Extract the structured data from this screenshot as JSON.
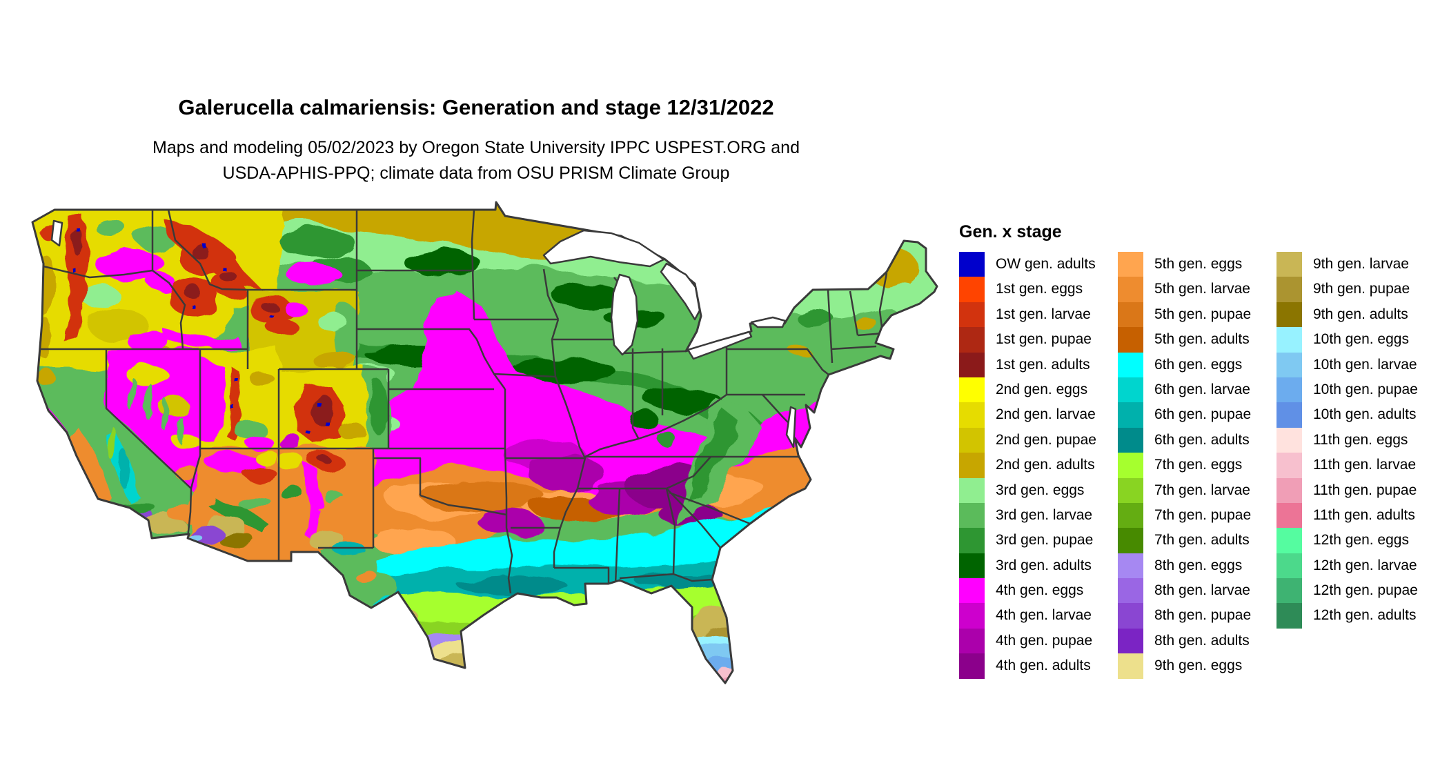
{
  "header": {
    "title": "Galerucella calmariensis: Generation and stage 12/31/2022",
    "subtitle_line1": "Maps and modeling 05/02/2023 by Oregon State University IPPC USPEST.ORG and",
    "subtitle_line2": "USDA-APHIS-PPQ; climate data from OSU PRISM Climate Group"
  },
  "legend": {
    "title": "Gen. x stage",
    "columns": [
      [
        {
          "label": "OW gen. adults",
          "color": "#0000CC"
        },
        {
          "label": "1st gen. eggs",
          "color": "#FF4400"
        },
        {
          "label": "1st gen. larvae",
          "color": "#D2330E"
        },
        {
          "label": "1st gen. pupae",
          "color": "#AE2813"
        },
        {
          "label": "1st gen. adults",
          "color": "#8B1A1A"
        },
        {
          "label": "2nd gen. eggs",
          "color": "#FFFF00"
        },
        {
          "label": "2nd gen. larvae",
          "color": "#E6DC00"
        },
        {
          "label": "2nd gen. pupae",
          "color": "#D2C400"
        },
        {
          "label": "2nd gen. adults",
          "color": "#C7A600"
        },
        {
          "label": "3rd gen. eggs",
          "color": "#90EE90"
        },
        {
          "label": "3rd gen. larvae",
          "color": "#5BBB5B"
        },
        {
          "label": "3rd gen. pupae",
          "color": "#2E9632"
        },
        {
          "label": "3rd gen. adults",
          "color": "#006400"
        },
        {
          "label": "4th gen. eggs",
          "color": "#FF00FF"
        },
        {
          "label": "4th gen. larvae",
          "color": "#CD00CD"
        },
        {
          "label": "4th gen. pupae",
          "color": "#AB00AB"
        },
        {
          "label": "4th gen. adults",
          "color": "#8B008B"
        }
      ],
      [
        {
          "label": "5th gen. eggs",
          "color": "#FFA54F"
        },
        {
          "label": "5th gen. larvae",
          "color": "#EE8C2F"
        },
        {
          "label": "5th gen. pupae",
          "color": "#DA7718"
        },
        {
          "label": "5th gen. adults",
          "color": "#C66000"
        },
        {
          "label": "6th gen. eggs",
          "color": "#00FFFF"
        },
        {
          "label": "6th gen. larvae",
          "color": "#00D5CE"
        },
        {
          "label": "6th gen. pupae",
          "color": "#00B1AC"
        },
        {
          "label": "6th gen. adults",
          "color": "#008B8B"
        },
        {
          "label": "7th gen. eggs",
          "color": "#A6FF2E"
        },
        {
          "label": "7th gen. larvae",
          "color": "#89D422"
        },
        {
          "label": "7th gen. pupae",
          "color": "#64AD12"
        },
        {
          "label": "7th gen. adults",
          "color": "#478A00"
        },
        {
          "label": "8th gen. eggs",
          "color": "#A688F2"
        },
        {
          "label": "8th gen. larvae",
          "color": "#9A66E4"
        },
        {
          "label": "8th gen. pupae",
          "color": "#8A46D2"
        },
        {
          "label": "8th gen. adults",
          "color": "#7B24C4"
        },
        {
          "label": "9th gen. eggs",
          "color": "#EDE08C"
        }
      ],
      [
        {
          "label": "9th gen. larvae",
          "color": "#C9B655"
        },
        {
          "label": "9th gen. pupae",
          "color": "#AB9430"
        },
        {
          "label": "9th gen. adults",
          "color": "#8B7500"
        },
        {
          "label": "10th gen. eggs",
          "color": "#97F2FF"
        },
        {
          "label": "10th gen. larvae",
          "color": "#7FC9F2"
        },
        {
          "label": "10th gen. pupae",
          "color": "#6CACEE"
        },
        {
          "label": "10th gen. adults",
          "color": "#6090E6"
        },
        {
          "label": "11th gen. eggs",
          "color": "#FFE2DE"
        },
        {
          "label": "11th gen. larvae",
          "color": "#F7C0CE"
        },
        {
          "label": "11th gen. pupae",
          "color": "#F09EB6"
        },
        {
          "label": "11th gen. adults",
          "color": "#EC7496"
        },
        {
          "label": "12th gen. eggs",
          "color": "#55FCA0"
        },
        {
          "label": "12th gen. larvae",
          "color": "#4CD98B"
        },
        {
          "label": "12th gen. pupae",
          "color": "#3EB372"
        },
        {
          "label": "12th gen. adults",
          "color": "#2E8B57"
        }
      ]
    ]
  },
  "map": {
    "region": "Continental United States",
    "state_border_color": "#3A3A3A",
    "water_color": "#FFFFFF"
  }
}
